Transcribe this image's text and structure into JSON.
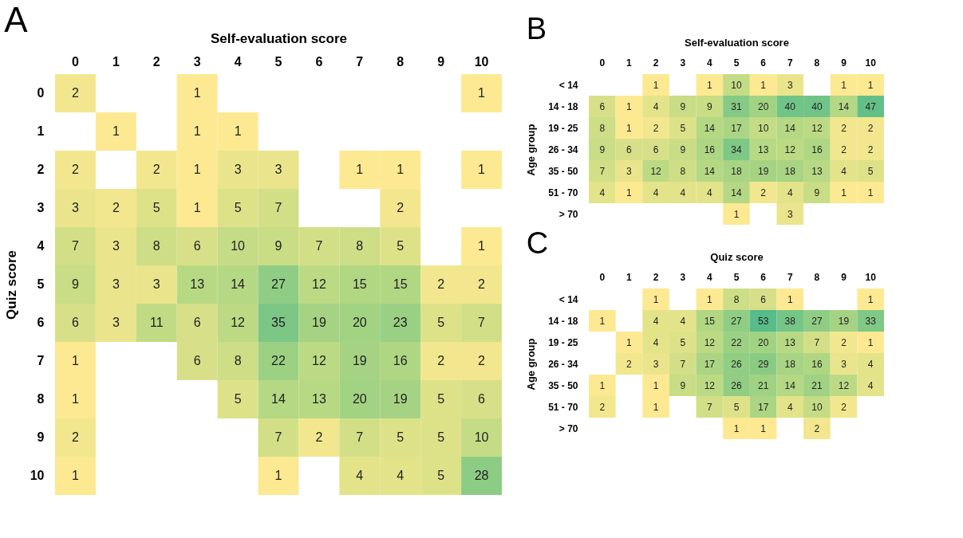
{
  "chart_data": [
    {
      "type": "heatmap",
      "annotations": [
        "A"
      ],
      "xlabel": "Self-evaluation score",
      "ylabel": "Quiz score",
      "data_labels": true,
      "categories": [
        "0",
        "1",
        "2",
        "3",
        "4",
        "5",
        "6",
        "7",
        "8",
        "9",
        "10"
      ],
      "y_categories": [
        "0",
        "1",
        "2",
        "3",
        "4",
        "5",
        "6",
        "7",
        "8",
        "9",
        "10"
      ],
      "cells": [
        [
          2,
          null,
          null,
          1,
          null,
          null,
          null,
          null,
          null,
          null,
          1
        ],
        [
          null,
          1,
          null,
          1,
          1,
          null,
          null,
          null,
          null,
          null,
          null
        ],
        [
          2,
          null,
          2,
          1,
          3,
          3,
          null,
          1,
          1,
          null,
          1
        ],
        [
          3,
          2,
          5,
          1,
          5,
          7,
          null,
          null,
          2,
          null,
          null
        ],
        [
          7,
          3,
          8,
          6,
          10,
          9,
          7,
          8,
          5,
          null,
          1
        ],
        [
          9,
          3,
          3,
          13,
          14,
          27,
          12,
          15,
          15,
          2,
          2
        ],
        [
          6,
          3,
          11,
          6,
          12,
          35,
          19,
          20,
          23,
          5,
          7
        ],
        [
          1,
          null,
          null,
          6,
          8,
          22,
          12,
          19,
          16,
          2,
          2
        ],
        [
          1,
          null,
          null,
          null,
          5,
          14,
          13,
          20,
          19,
          5,
          6
        ],
        [
          2,
          null,
          null,
          null,
          null,
          7,
          2,
          7,
          5,
          5,
          10
        ],
        [
          1,
          null,
          null,
          null,
          null,
          1,
          null,
          4,
          4,
          5,
          28
        ]
      ]
    },
    {
      "type": "heatmap",
      "annotations": [
        "B"
      ],
      "xlabel": "Self-evaluation score",
      "ylabel": "Age group",
      "data_labels": true,
      "categories": [
        "0",
        "1",
        "2",
        "3",
        "4",
        "5",
        "6",
        "7",
        "8",
        "9",
        "10"
      ],
      "y_categories": [
        "< 14",
        "14 - 18",
        "19 - 25",
        "26 - 34",
        "35 - 50",
        "51 - 70",
        "> 70"
      ],
      "cells": [
        [
          null,
          null,
          1,
          null,
          1,
          10,
          1,
          3,
          null,
          1,
          1
        ],
        [
          6,
          1,
          4,
          9,
          9,
          31,
          20,
          40,
          40,
          14,
          47
        ],
        [
          8,
          1,
          2,
          5,
          14,
          17,
          10,
          14,
          12,
          2,
          2
        ],
        [
          9,
          6,
          6,
          9,
          16,
          34,
          13,
          12,
          16,
          2,
          2
        ],
        [
          7,
          3,
          12,
          8,
          14,
          18,
          19,
          18,
          13,
          4,
          5
        ],
        [
          4,
          1,
          4,
          4,
          4,
          14,
          2,
          4,
          9,
          1,
          1
        ],
        [
          null,
          null,
          null,
          null,
          null,
          1,
          null,
          3,
          null,
          null,
          null
        ]
      ]
    },
    {
      "type": "heatmap",
      "annotations": [
        "C"
      ],
      "xlabel": "Quiz score",
      "ylabel": "Age group",
      "data_labels": true,
      "categories": [
        "0",
        "1",
        "2",
        "3",
        "4",
        "5",
        "6",
        "7",
        "8",
        "9",
        "10"
      ],
      "y_categories": [
        "< 14",
        "14 - 18",
        "19 - 25",
        "26 - 34",
        "35 - 50",
        "51 - 70",
        "> 70"
      ],
      "cells": [
        [
          null,
          null,
          1,
          null,
          1,
          8,
          6,
          1,
          null,
          null,
          1
        ],
        [
          1,
          null,
          4,
          4,
          15,
          27,
          53,
          38,
          27,
          19,
          33
        ],
        [
          null,
          1,
          4,
          5,
          12,
          22,
          20,
          13,
          7,
          2,
          1
        ],
        [
          null,
          2,
          3,
          7,
          17,
          26,
          29,
          18,
          16,
          3,
          4
        ],
        [
          1,
          null,
          1,
          9,
          12,
          26,
          21,
          14,
          21,
          12,
          4
        ],
        [
          2,
          null,
          1,
          null,
          7,
          5,
          17,
          4,
          10,
          2,
          null
        ],
        [
          null,
          null,
          null,
          null,
          null,
          1,
          1,
          null,
          2,
          null,
          null
        ]
      ]
    }
  ]
}
